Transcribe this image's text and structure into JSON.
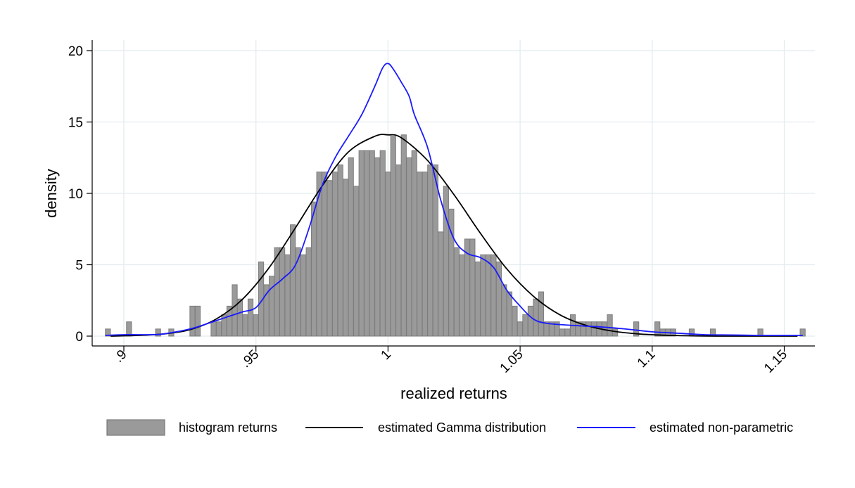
{
  "chart_data": {
    "type": "bar",
    "title": "",
    "xlabel": "realized returns",
    "ylabel": "density",
    "xlim": [
      0.893,
      1.157
    ],
    "ylim": [
      0,
      20
    ],
    "grid": true,
    "legend_position": "bottom",
    "x_ticks": [
      {
        "value": 0.9,
        "label": ".9"
      },
      {
        "value": 0.95,
        "label": ".95"
      },
      {
        "value": 1.0,
        "label": "1"
      },
      {
        "value": 1.05,
        "label": "1.05"
      },
      {
        "value": 1.1,
        "label": "1.1"
      },
      {
        "value": 1.15,
        "label": "1.15"
      }
    ],
    "y_ticks": [
      {
        "value": 0,
        "label": "0"
      },
      {
        "value": 5,
        "label": "5"
      },
      {
        "value": 10,
        "label": "10"
      },
      {
        "value": 15,
        "label": "15"
      },
      {
        "value": 20,
        "label": "20"
      }
    ],
    "bin_width": 0.002,
    "histogram": {
      "name": "histogram returns",
      "color": "#9a9a9a",
      "bins": [
        [
          0.894,
          0.5
        ],
        [
          0.902,
          1.0
        ],
        [
          0.913,
          0.5
        ],
        [
          0.918,
          0.5
        ],
        [
          0.926,
          2.1
        ],
        [
          0.928,
          2.1
        ],
        [
          0.934,
          1.0
        ],
        [
          0.936,
          1.0
        ],
        [
          0.938,
          1.5
        ],
        [
          0.94,
          2.1
        ],
        [
          0.942,
          3.6
        ],
        [
          0.944,
          2.6
        ],
        [
          0.946,
          1.5
        ],
        [
          0.948,
          2.6
        ],
        [
          0.95,
          1.5
        ],
        [
          0.952,
          5.2
        ],
        [
          0.954,
          3.6
        ],
        [
          0.956,
          4.2
        ],
        [
          0.958,
          6.2
        ],
        [
          0.96,
          6.2
        ],
        [
          0.962,
          5.7
        ],
        [
          0.964,
          7.8
        ],
        [
          0.966,
          6.2
        ],
        [
          0.968,
          5.7
        ],
        [
          0.97,
          6.2
        ],
        [
          0.972,
          9.4
        ],
        [
          0.974,
          11.5
        ],
        [
          0.976,
          11.5
        ],
        [
          0.978,
          10.9
        ],
        [
          0.98,
          11.5
        ],
        [
          0.982,
          12.0
        ],
        [
          0.984,
          11.0
        ],
        [
          0.986,
          12.5
        ],
        [
          0.988,
          10.5
        ],
        [
          0.99,
          13.0
        ],
        [
          0.992,
          13.0
        ],
        [
          0.994,
          13.0
        ],
        [
          0.996,
          12.5
        ],
        [
          0.998,
          13.0
        ],
        [
          1.0,
          11.5
        ],
        [
          1.002,
          14.0
        ],
        [
          1.004,
          12.0
        ],
        [
          1.006,
          14.1
        ],
        [
          1.008,
          12.5
        ],
        [
          1.01,
          13.0
        ],
        [
          1.012,
          11.5
        ],
        [
          1.014,
          11.5
        ],
        [
          1.016,
          12.0
        ],
        [
          1.018,
          12.0
        ],
        [
          1.02,
          7.3
        ],
        [
          1.022,
          10.5
        ],
        [
          1.024,
          8.9
        ],
        [
          1.026,
          6.2
        ],
        [
          1.028,
          5.7
        ],
        [
          1.03,
          6.8
        ],
        [
          1.032,
          6.8
        ],
        [
          1.034,
          5.2
        ],
        [
          1.036,
          5.7
        ],
        [
          1.038,
          5.7
        ],
        [
          1.04,
          5.7
        ],
        [
          1.042,
          5.2
        ],
        [
          1.044,
          3.6
        ],
        [
          1.046,
          3.1
        ],
        [
          1.048,
          2.1
        ],
        [
          1.05,
          1.0
        ],
        [
          1.052,
          1.5
        ],
        [
          1.054,
          2.1
        ],
        [
          1.056,
          2.6
        ],
        [
          1.058,
          3.1
        ],
        [
          1.06,
          1.0
        ],
        [
          1.062,
          1.0
        ],
        [
          1.064,
          1.0
        ],
        [
          1.066,
          0.5
        ],
        [
          1.068,
          0.5
        ],
        [
          1.07,
          1.5
        ],
        [
          1.072,
          1.0
        ],
        [
          1.074,
          1.0
        ],
        [
          1.076,
          1.0
        ],
        [
          1.078,
          1.0
        ],
        [
          1.08,
          1.0
        ],
        [
          1.082,
          1.0
        ],
        [
          1.084,
          1.5
        ],
        [
          1.086,
          0.5
        ],
        [
          1.094,
          1.0
        ],
        [
          1.102,
          1.0
        ],
        [
          1.104,
          0.5
        ],
        [
          1.106,
          0.5
        ],
        [
          1.108,
          0.5
        ],
        [
          1.115,
          0.5
        ],
        [
          1.123,
          0.5
        ],
        [
          1.141,
          0.5
        ],
        [
          1.157,
          0.5
        ]
      ]
    },
    "series": [
      {
        "name": "estimated Gamma distribution",
        "type": "line",
        "color": "#000000",
        "x": [
          0.895,
          0.905,
          0.915,
          0.925,
          0.935,
          0.945,
          0.955,
          0.965,
          0.975,
          0.985,
          0.995,
          1.0,
          1.005,
          1.015,
          1.025,
          1.035,
          1.045,
          1.055,
          1.065,
          1.075,
          1.085,
          1.095,
          1.105,
          1.115,
          1.125,
          1.135,
          1.145,
          1.155
        ],
        "y": [
          0.0,
          0.05,
          0.15,
          0.45,
          1.2,
          2.6,
          4.8,
          7.6,
          10.5,
          12.9,
          14.0,
          14.1,
          13.9,
          12.3,
          9.9,
          7.2,
          4.7,
          2.8,
          1.5,
          0.75,
          0.35,
          0.15,
          0.06,
          0.02,
          0.0,
          0.0,
          0.0,
          0.0
        ]
      },
      {
        "name": "estimated non-parametric",
        "type": "line",
        "color": "#1a1aff",
        "x": [
          0.893,
          0.9,
          0.91,
          0.915,
          0.925,
          0.932,
          0.94,
          0.945,
          0.95,
          0.955,
          0.96,
          0.965,
          0.97,
          0.975,
          0.98,
          0.985,
          0.99,
          0.995,
          0.998,
          1.0,
          1.002,
          1.005,
          1.008,
          1.01,
          1.015,
          1.02,
          1.025,
          1.03,
          1.035,
          1.04,
          1.045,
          1.05,
          1.055,
          1.06,
          1.07,
          1.08,
          1.09,
          1.1,
          1.11,
          1.12,
          1.13,
          1.14,
          1.15,
          1.157
        ],
        "y": [
          0.05,
          0.1,
          0.1,
          0.15,
          0.5,
          0.9,
          1.4,
          1.7,
          2.0,
          3.2,
          4.0,
          5.0,
          7.5,
          10.5,
          12.5,
          14.0,
          15.5,
          17.5,
          18.8,
          19.1,
          18.7,
          17.8,
          16.8,
          15.5,
          13.2,
          9.5,
          6.8,
          5.8,
          5.5,
          4.8,
          3.2,
          2.1,
          1.2,
          0.9,
          0.75,
          0.65,
          0.5,
          0.3,
          0.2,
          0.1,
          0.08,
          0.05,
          0.05,
          0.05
        ]
      }
    ],
    "legend": [
      {
        "label": "histogram returns",
        "kind": "box",
        "color": "#9a9a9a"
      },
      {
        "label": "estimated Gamma distribution",
        "kind": "line",
        "color": "#000000"
      },
      {
        "label": "estimated non-parametric",
        "kind": "line",
        "color": "#1a1aff"
      }
    ]
  }
}
